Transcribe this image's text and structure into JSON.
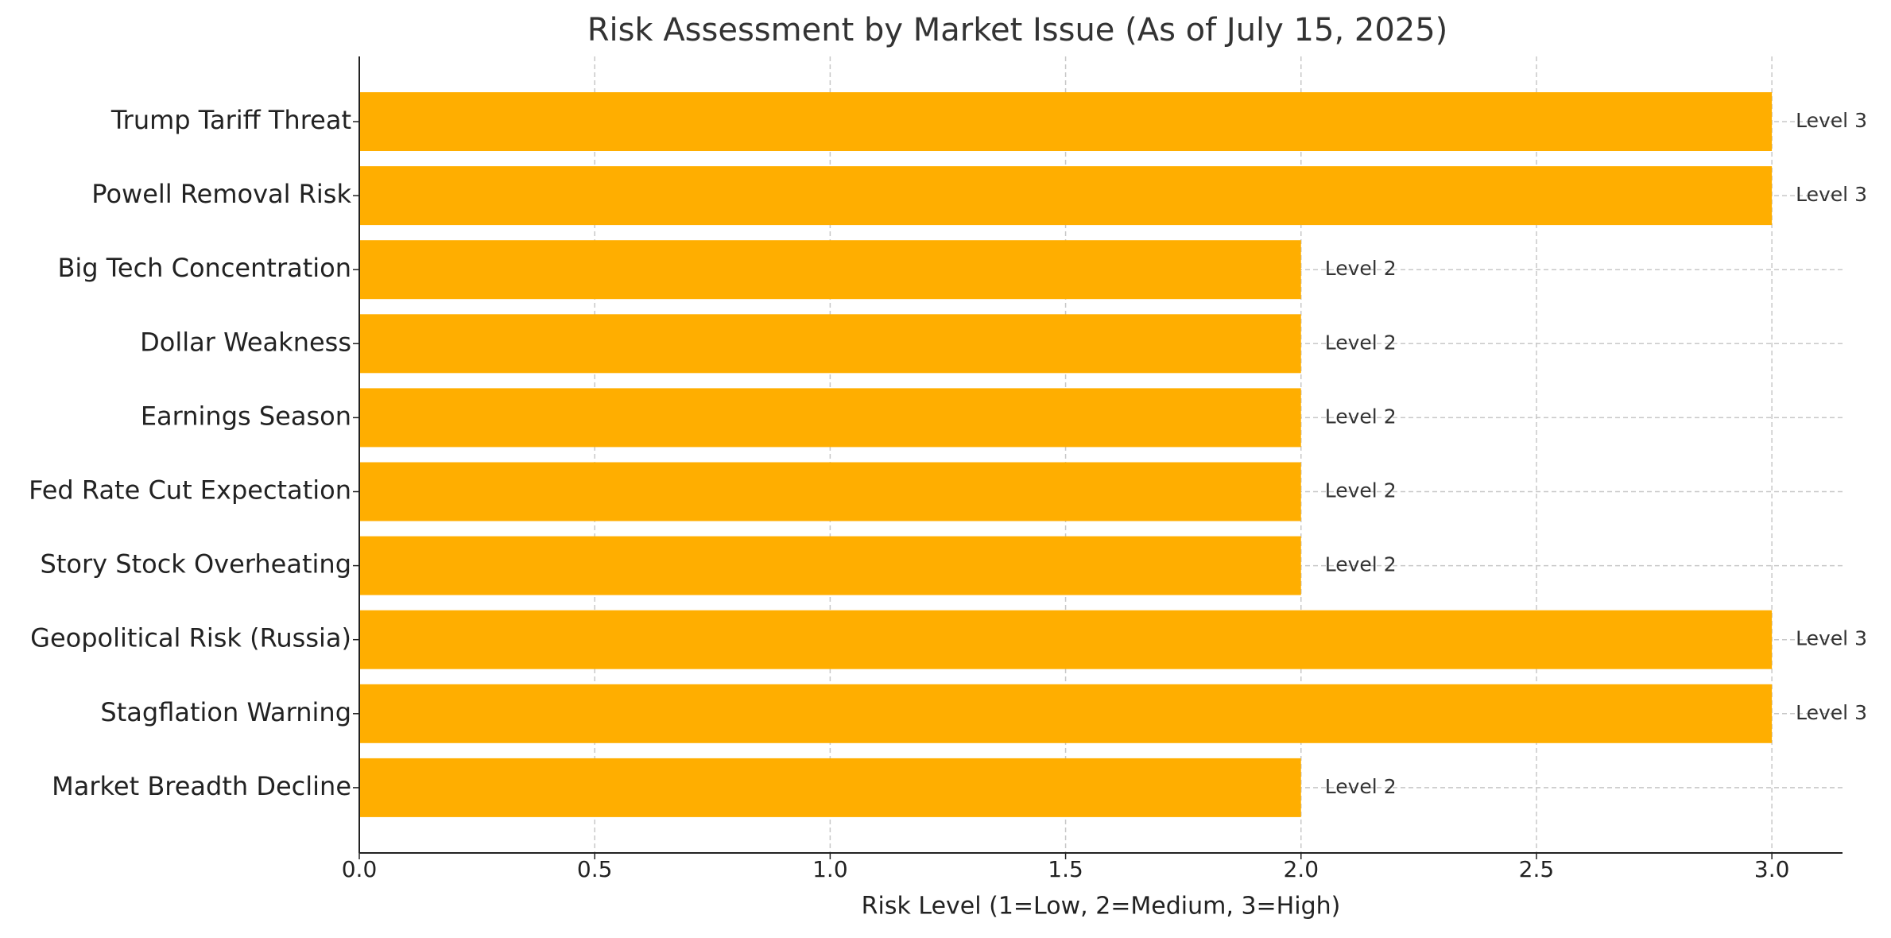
{
  "chart_data": {
    "type": "hbar",
    "title": "Risk Assessment by Market Issue (As of July 15, 2025)",
    "x_label": "Risk Level (1=Low, 2=Medium, 3=High)",
    "categories": [
      "Trump Tariff Threat",
      "Powell Removal Risk",
      "Big Tech Concentration",
      "Dollar Weakness",
      "Earnings Season",
      "Fed Rate Cut Expectation",
      "Story Stock Overheating",
      "Geopolitical Risk (Russia)",
      "Stagflation Warning",
      "Market Breadth Decline"
    ],
    "values": [
      3,
      3,
      2,
      2,
      2,
      2,
      2,
      3,
      3,
      2
    ],
    "value_labels": [
      "Level 3",
      "Level 3",
      "Level 2",
      "Level 2",
      "Level 2",
      "Level 2",
      "Level 2",
      "Level 3",
      "Level 3",
      "Level 2"
    ],
    "color": "#ffae00",
    "xlim": [
      0,
      3.15
    ],
    "xticks": [
      {
        "value": 0,
        "label": "0.0"
      },
      0.5,
      {
        "value": 1,
        "label": "1.0"
      },
      1.5,
      {
        "value": 2,
        "label": "2.0"
      },
      2.5,
      {
        "value": 3,
        "label": "3.0"
      }
    ],
    "grid": true
  }
}
